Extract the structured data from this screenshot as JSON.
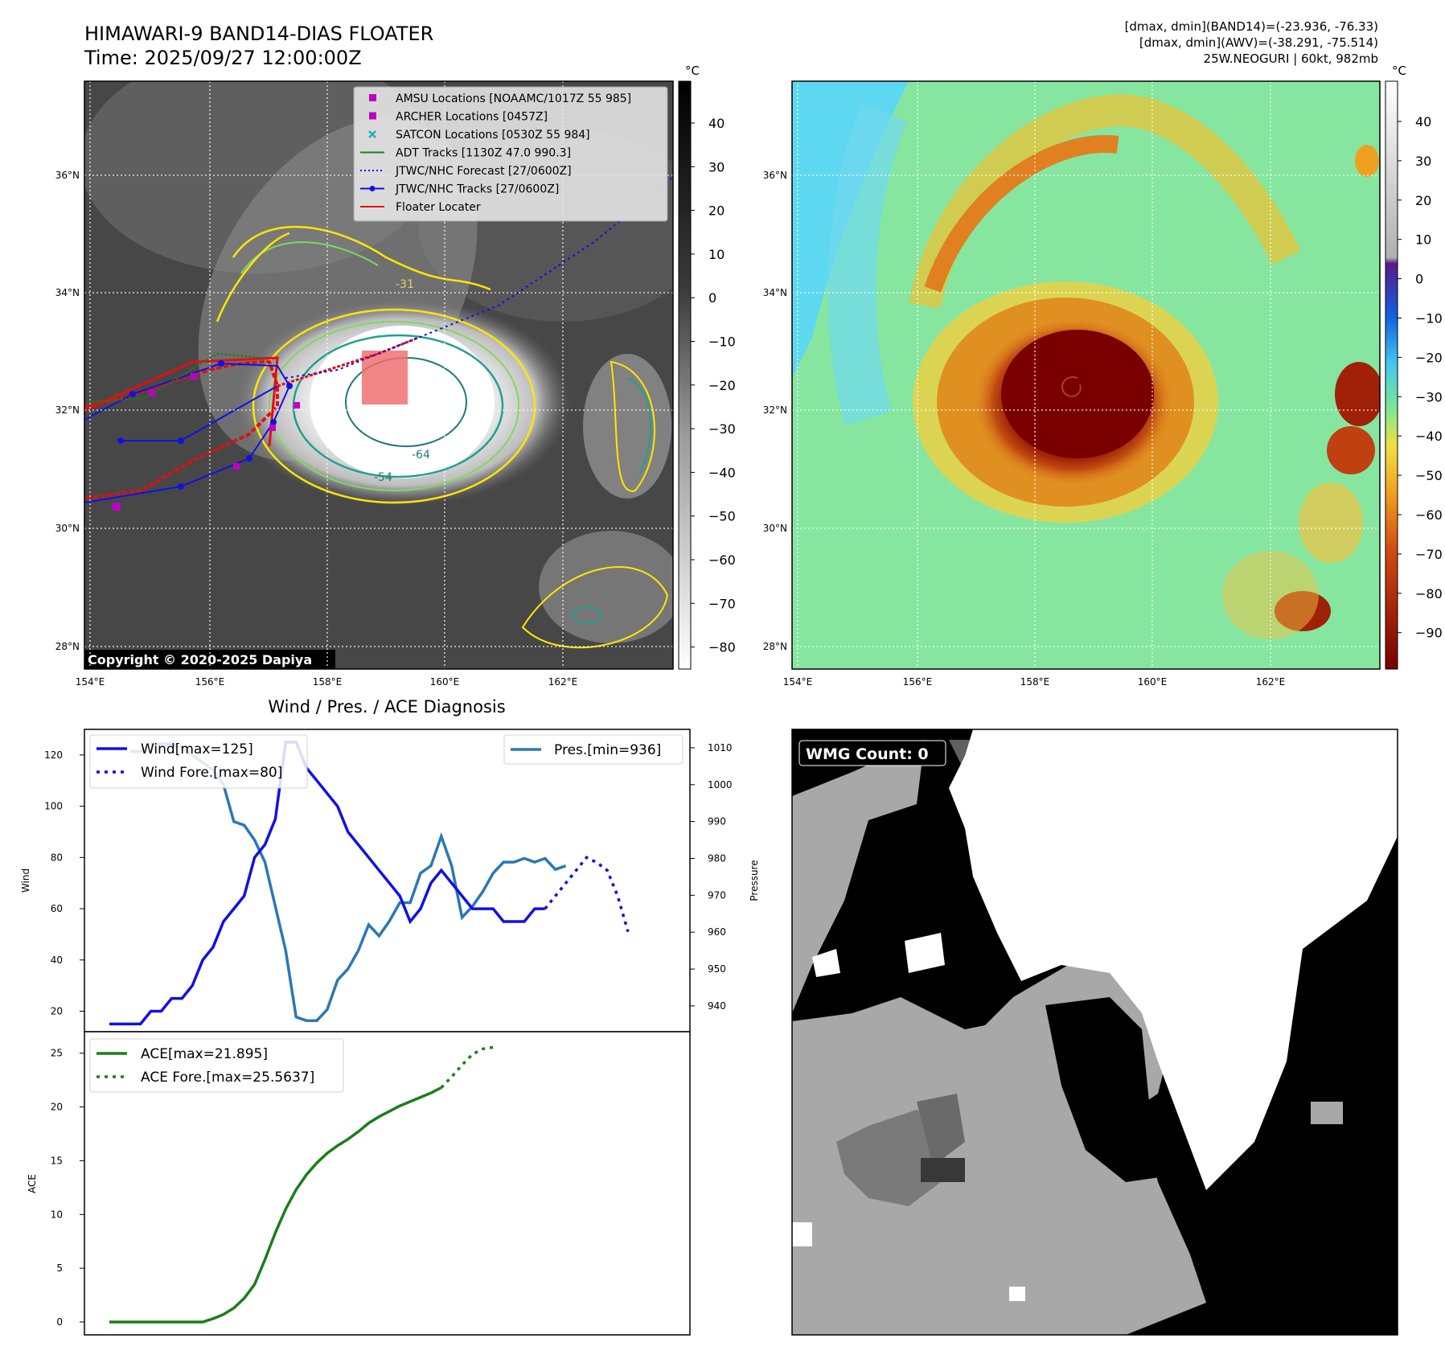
{
  "header": {
    "title": "HIMAWARI-9 BAND14-DIAS FLOATER",
    "time": "Time: 2025/09/27 12:00:00Z",
    "dmax_band14": "[dmax, dmin](BAND14)=(-23.936, -76.33)",
    "dmax_awv": "[dmax, dmin](AWV)=(-38.291, -75.514)",
    "storm": "25W.NEOGURI | 60kt, 982mb"
  },
  "colors": {
    "wind": "#1010e6",
    "pressure": "#2a78b4",
    "ace": "#1a7f1a",
    "amsu": "#c000c0",
    "archer": "#c000c0",
    "satcon": "#20b0b0",
    "adt": "#1a7f1a",
    "jtwc": "#1010e6",
    "floater": "#e01010"
  },
  "map": {
    "lon_ticks": [
      "154°E",
      "156°E",
      "158°E",
      "160°E",
      "162°E"
    ],
    "lat_ticks": [
      "28°N",
      "30°N",
      "32°N",
      "34°N",
      "36°N"
    ],
    "copyright": "Copyright © 2020-2025 Dapiya",
    "legend": [
      {
        "label": "AMSU Locations [NOAAMC/1017Z 55 985]",
        "marker": "square",
        "color_key": "amsu"
      },
      {
        "label": "ARCHER Locations [0457Z]",
        "marker": "square",
        "color_key": "archer"
      },
      {
        "label": "SATCON Locations [0530Z 55 984]",
        "marker": "x",
        "color_key": "satcon"
      },
      {
        "label": "ADT Tracks [1130Z 47.0 990.3]",
        "marker": "line",
        "color_key": "adt"
      },
      {
        "label": "JTWC/NHC Forecast [27/0600Z]",
        "marker": "dotted",
        "color_key": "jtwc"
      },
      {
        "label": "JTWC/NHC Tracks [27/0600Z]",
        "marker": "line-dot",
        "color_key": "jtwc"
      },
      {
        "label": "Floater Locater",
        "marker": "line",
        "color_key": "floater"
      }
    ],
    "contour_labels": [
      "-31",
      "-54",
      "-64"
    ]
  },
  "colorbar_left": {
    "unit": "°C",
    "ticks": [
      "40",
      "30",
      "20",
      "10",
      "0",
      "−10",
      "−20",
      "−30",
      "−40",
      "−50",
      "−60",
      "−70",
      "−80"
    ]
  },
  "colorbar_right": {
    "unit": "°C",
    "ticks": [
      "40",
      "30",
      "20",
      "10",
      "0",
      "−10",
      "−20",
      "−30",
      "−40",
      "−50",
      "−60",
      "−70",
      "−80",
      "−90"
    ]
  },
  "wmg": {
    "label": "WMG Count: 0"
  },
  "chart_data": [
    {
      "type": "line",
      "title": "Wind / Pres. / ACE Diagnosis",
      "ylabel": "Wind",
      "ylim": [
        12,
        130
      ],
      "yticks": [
        "20",
        "40",
        "60",
        "80",
        "100",
        "120"
      ],
      "series": [
        {
          "name": "Wind[max=125]",
          "axis": "left",
          "values": [
            15,
            15,
            15,
            15,
            20,
            20,
            25,
            25,
            30,
            40,
            45,
            55,
            60,
            65,
            80,
            85,
            95,
            125,
            125,
            115,
            110,
            105,
            100,
            90,
            85,
            80,
            75,
            70,
            65,
            55,
            60,
            70,
            75,
            70,
            65,
            60,
            60,
            60,
            55,
            55,
            55,
            60,
            60
          ]
        },
        {
          "name": "Wind Fore.[max=80]",
          "axis": "left",
          "style": "dotted",
          "x_offset": 42,
          "values": [
            60,
            65,
            70,
            75,
            80,
            78,
            75,
            65,
            51
          ]
        },
        {
          "name": "Pres.[min=936]",
          "axis": "right",
          "ylabel": "Pressure",
          "ylim": [
            933,
            1015
          ],
          "yticks": [
            "940",
            "950",
            "960",
            "970",
            "980",
            "990",
            "1000",
            "1010"
          ],
          "x_start": 2,
          "values": [
            1009,
            1009,
            1011,
            1011,
            1011,
            1010,
            1008,
            1006,
            1004,
            1000,
            990,
            989,
            985,
            979,
            967,
            955,
            937,
            936,
            936,
            939,
            947,
            950,
            955,
            962,
            959,
            963,
            968,
            968,
            976,
            978,
            986,
            978,
            964,
            967,
            971,
            976,
            979,
            979,
            980,
            979,
            980,
            977,
            978
          ]
        }
      ]
    },
    {
      "type": "line",
      "ylabel": "ACE",
      "ylim": [
        -1.2,
        27
      ],
      "yticks": [
        "0",
        "5",
        "10",
        "15",
        "20",
        "25"
      ],
      "series": [
        {
          "name": "ACE[max=21.895]",
          "values": [
            0,
            0,
            0,
            0,
            0,
            0,
            0,
            0,
            0,
            0,
            0.3,
            0.7,
            1.3,
            2.2,
            3.5,
            5.8,
            8.3,
            10.5,
            12.3,
            13.7,
            14.8,
            15.7,
            16.4,
            17.0,
            17.7,
            18.5,
            19.1,
            19.6,
            20.1,
            20.5,
            20.9,
            21.3,
            21.8
          ]
        },
        {
          "name": "ACE Fore.[max=25.5637]",
          "style": "dotted",
          "x_offset": 32,
          "values": [
            21.8,
            22.8,
            23.9,
            24.9,
            25.4,
            25.56
          ]
        }
      ]
    }
  ]
}
